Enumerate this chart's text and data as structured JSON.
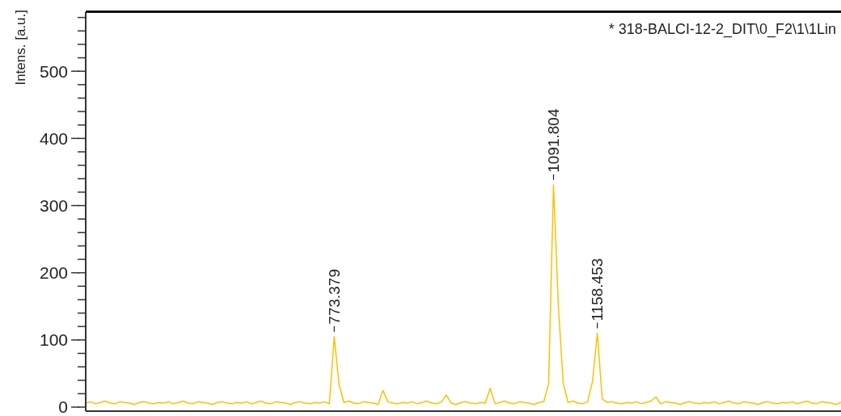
{
  "chart_data": {
    "type": "line",
    "title": "* 318-BALCI-12-2_DIT\\0_F2\\1\\1Lin",
    "ylabel": "Intens. [a.u.]",
    "categories": [
      null,
      null,
      null,
      null,
      null,
      null,
      null,
      null,
      null,
      null,
      null,
      null,
      null,
      null,
      null,
      null,
      null,
      null,
      null,
      null,
      null,
      null,
      null,
      null,
      null,
      null,
      null,
      null,
      null,
      null,
      null,
      null,
      null,
      null,
      null,
      null,
      null,
      null,
      null,
      null,
      null,
      null,
      null,
      null,
      null,
      null,
      null,
      null,
      null,
      null,
      null,
      null,
      null,
      null,
      null,
      null,
      null,
      null,
      null,
      null,
      null,
      null,
      null,
      null,
      null,
      null,
      null,
      null,
      null,
      null,
      null,
      null,
      null,
      null,
      null,
      null,
      null,
      null,
      null,
      null,
      null,
      null,
      null,
      null,
      null,
      null,
      null,
      null,
      null,
      null,
      null,
      null,
      null,
      null,
      null,
      null,
      null,
      null,
      null,
      null,
      null,
      null,
      null,
      null,
      null,
      null,
      null,
      null,
      null,
      null,
      null,
      null,
      null,
      null,
      null,
      null,
      null,
      null,
      null,
      null,
      null,
      null,
      null,
      null,
      null,
      null,
      null,
      null,
      null,
      null,
      null,
      null,
      null,
      null,
      null,
      null,
      null,
      null,
      null,
      null,
      null,
      null,
      null,
      null,
      null,
      null,
      null,
      null,
      null,
      null,
      null,
      null,
      null,
      null,
      null,
      null
    ],
    "series": [
      {
        "color": "#ffc000",
        "values": [
          6,
          8,
          5,
          7,
          9,
          6,
          5,
          8,
          7,
          6,
          4,
          7,
          8,
          6,
          5,
          7,
          6,
          8,
          5,
          7,
          9,
          6,
          5,
          8,
          7,
          6,
          4,
          7,
          8,
          6,
          5,
          7,
          6,
          8,
          5,
          7,
          9,
          6,
          5,
          8,
          7,
          6,
          4,
          7,
          8,
          6,
          5,
          7,
          6,
          8,
          5,
          105,
          33,
          7,
          9,
          6,
          5,
          8,
          7,
          6,
          4,
          25,
          8,
          6,
          5,
          7,
          6,
          8,
          5,
          7,
          9,
          6,
          5,
          8,
          18,
          6,
          4,
          7,
          8,
          6,
          5,
          7,
          6,
          28,
          5,
          7,
          9,
          6,
          5,
          8,
          7,
          6,
          4,
          7,
          8,
          35,
          331,
          150,
          35,
          7,
          9,
          6,
          5,
          8,
          38,
          110,
          12,
          7,
          8,
          6,
          5,
          7,
          6,
          8,
          5,
          7,
          9,
          15,
          5,
          8,
          7,
          6,
          4,
          7,
          8,
          6,
          5,
          7,
          6,
          8,
          5,
          7,
          9,
          6,
          5,
          8,
          7,
          6,
          4,
          7,
          8,
          6,
          5,
          7,
          6,
          8,
          5,
          7,
          9,
          6,
          5,
          8,
          7,
          6,
          4,
          7
        ]
      }
    ],
    "annotations": [
      {
        "text": "773.379",
        "y": 105
      },
      {
        "text": "1091.804",
        "y": 331
      },
      {
        "text": "1158.453",
        "y": 110
      }
    ],
    "ylim": [
      -6,
      588
    ],
    "yticks": [
      0,
      {
        "value": 20,
        "label": null
      },
      {
        "value": 40,
        "label": null
      },
      {
        "value": 60,
        "label": null
      },
      {
        "value": 80,
        "label": null
      },
      100,
      {
        "value": 120,
        "label": null
      },
      {
        "value": 140,
        "label": null
      },
      {
        "value": 160,
        "label": null
      },
      {
        "value": 180,
        "label": null
      },
      200,
      {
        "value": 220,
        "label": null
      },
      {
        "value": 240,
        "label": null
      },
      {
        "value": 260,
        "label": null
      },
      {
        "value": 280,
        "label": null
      },
      300,
      {
        "value": 320,
        "label": null
      },
      {
        "value": 340,
        "label": null
      },
      {
        "value": 360,
        "label": null
      },
      {
        "value": 380,
        "label": null
      },
      400,
      {
        "value": 420,
        "label": null
      },
      {
        "value": 440,
        "label": null
      },
      {
        "value": 460,
        "label": null
      },
      {
        "value": 480,
        "label": null
      },
      500,
      {
        "value": 520,
        "label": null
      },
      {
        "value": 540,
        "label": null
      },
      {
        "value": 560,
        "label": null
      },
      {
        "value": 580,
        "label": null
      }
    ],
    "tick_labels": "y"
  }
}
